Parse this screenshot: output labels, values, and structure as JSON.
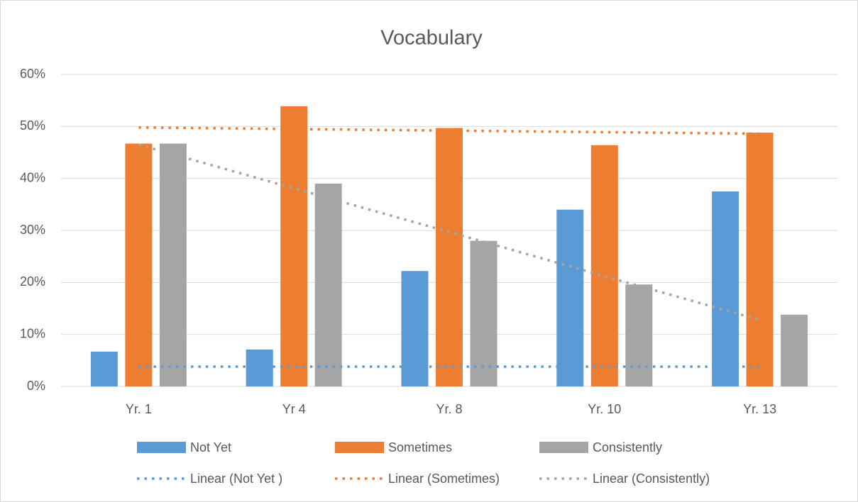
{
  "chart_data": {
    "type": "bar",
    "title": "Vocabulary",
    "categories": [
      "Yr. 1",
      "Yr 4",
      "Yr. 8",
      "Yr. 10",
      "Yr. 13"
    ],
    "series": [
      {
        "name": "Not Yet",
        "color": "#5b9bd5",
        "values": [
          6.7,
          7.1,
          22.2,
          34.0,
          37.5
        ]
      },
      {
        "name": "Sometimes",
        "color": "#ed7d31",
        "values": [
          46.7,
          53.9,
          49.7,
          46.4,
          48.8
        ]
      },
      {
        "name": "Consistently",
        "color": "#a5a5a5",
        "values": [
          46.7,
          39.0,
          28.0,
          19.6,
          13.8
        ]
      }
    ],
    "trendlines": [
      {
        "name": "Linear (Not Yet )",
        "color": "#5b9bd5",
        "values": [
          3.8,
          3.8,
          3.8,
          3.8,
          3.8
        ]
      },
      {
        "name": "Linear (Sometimes)",
        "color": "#ed7d31",
        "values": [
          49.8,
          49.5,
          49.2,
          48.9,
          48.6
        ]
      },
      {
        "name": "Linear (Consistently)",
        "color": "#a5a5a5",
        "values": [
          46.5,
          38.1,
          29.7,
          21.2,
          12.8
        ]
      }
    ],
    "ylim": [
      0,
      60
    ],
    "yticks": [
      {
        "value": 0,
        "label": "0%"
      },
      {
        "value": 10,
        "label": "10%"
      },
      {
        "value": 20,
        "label": "20%"
      },
      {
        "value": 30,
        "label": "30%"
      },
      {
        "value": 40,
        "label": "40%"
      },
      {
        "value": 50,
        "label": "50%"
      },
      {
        "value": 60,
        "label": "60%"
      }
    ],
    "grid": true,
    "legend": "bottom"
  }
}
